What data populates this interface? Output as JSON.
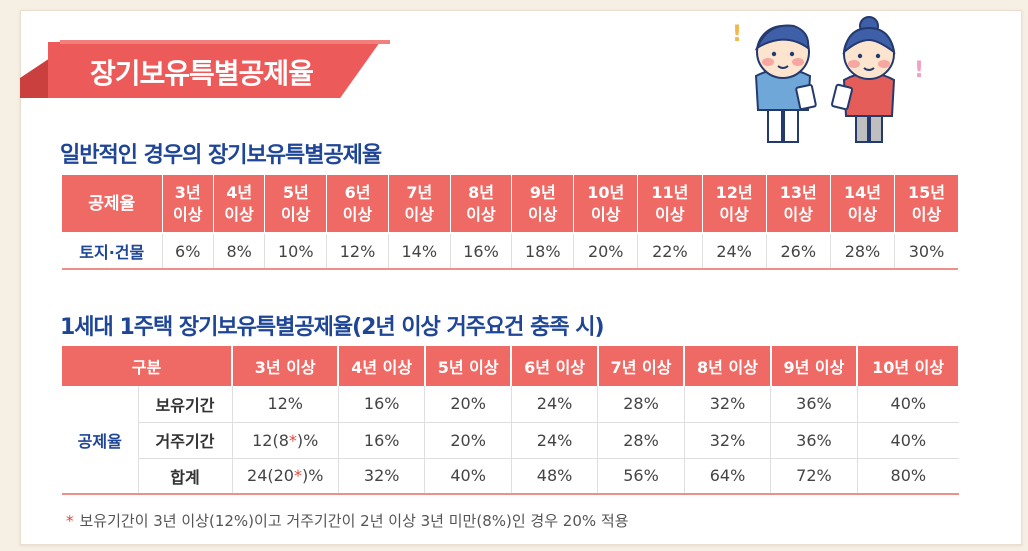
{
  "banner": {
    "title": "장기보유특별공제율"
  },
  "section1": {
    "title": "일반적인 경우의 장기보유특별공제율",
    "header_label": "공제율",
    "years": [
      [
        "3년",
        "이상"
      ],
      [
        "4년",
        "이상"
      ],
      [
        "5년",
        "이상"
      ],
      [
        "6년",
        "이상"
      ],
      [
        "7년",
        "이상"
      ],
      [
        "8년",
        "이상"
      ],
      [
        "9년",
        "이상"
      ],
      [
        "10년",
        "이상"
      ],
      [
        "11년",
        "이상"
      ],
      [
        "12년",
        "이상"
      ],
      [
        "13년",
        "이상"
      ],
      [
        "14년",
        "이상"
      ],
      [
        "15년",
        "이상"
      ]
    ],
    "row_label": "토지·건물",
    "rates": [
      "6%",
      "8%",
      "10%",
      "12%",
      "14%",
      "16%",
      "18%",
      "20%",
      "22%",
      "24%",
      "26%",
      "28%",
      "30%"
    ]
  },
  "section2": {
    "title": "1세대 1주택 장기보유특별공제율(2년 이상 거주요건 충족 시)",
    "header_label": "구분",
    "years": [
      "3년 이상",
      "4년 이상",
      "5년 이상",
      "6년 이상",
      "7년 이상",
      "8년 이상",
      "9년 이상",
      "10년 이상"
    ],
    "group_label": "공제율",
    "rows": [
      {
        "label": "보유기간",
        "first": {
          "pre": "12%",
          "star": "",
          "post": ""
        },
        "values": [
          "16%",
          "20%",
          "24%",
          "28%",
          "32%",
          "36%",
          "40%"
        ]
      },
      {
        "label": "거주기간",
        "first": {
          "pre": "12(8",
          "star": "*",
          "post": ")%"
        },
        "values": [
          "16%",
          "20%",
          "24%",
          "28%",
          "32%",
          "36%",
          "40%"
        ]
      },
      {
        "label": "합계",
        "first": {
          "pre": "24(20",
          "star": "*",
          "post": ")%"
        },
        "values": [
          "32%",
          "40%",
          "48%",
          "56%",
          "64%",
          "72%",
          "80%"
        ]
      }
    ]
  },
  "footnote": {
    "marker": "*",
    "text": "보유기간이 3년 이상(12%)이고 거주기간이 2년 이상 3년 미만(8%)인 경우 20% 적용"
  },
  "colors": {
    "accent": "#ef6a64",
    "title_blue": "#1e4596",
    "ribbon": "#ec5a5a"
  },
  "decor": {
    "bang": "!"
  }
}
